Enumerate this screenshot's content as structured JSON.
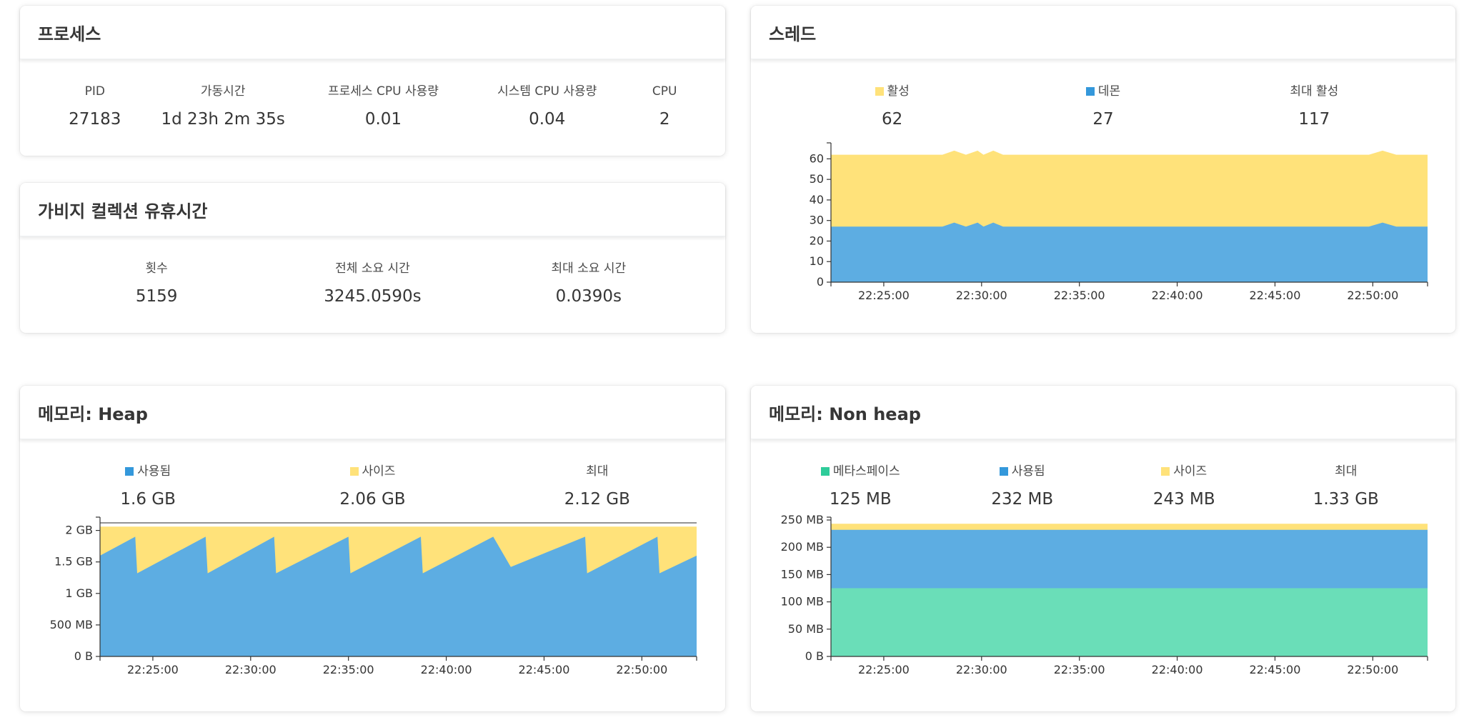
{
  "colors": {
    "active": "#ffe27a",
    "daemon": "#5dade2",
    "used": "#5dade2",
    "size": "#ffe27a",
    "metaspace": "#6adeb8"
  },
  "process": {
    "title": "프로세스",
    "stats": [
      {
        "label": "PID",
        "value": "27183"
      },
      {
        "label": "가동시간",
        "value": "1d 23h 2m 35s"
      },
      {
        "label": "프로세스 CPU 사용량",
        "value": "0.01"
      },
      {
        "label": "시스템 CPU 사용량",
        "value": "0.04"
      },
      {
        "label": "CPU",
        "value": "2"
      }
    ]
  },
  "gc": {
    "title": "가비지 컬렉션 유휴시간",
    "stats": [
      {
        "label": "횟수",
        "value": "5159"
      },
      {
        "label": "전체 소요 시간",
        "value": "3245.0590s"
      },
      {
        "label": "최대 소요 시간",
        "value": "0.0390s"
      }
    ]
  },
  "threads": {
    "title": "스레드",
    "stats": [
      {
        "label": "활성",
        "value": "62",
        "color": "#ffe27a"
      },
      {
        "label": "데몬",
        "value": "27",
        "color": "#5dade2"
      },
      {
        "label": "최대 활성",
        "value": "117"
      }
    ]
  },
  "heap": {
    "title": "메모리: Heap",
    "stats": [
      {
        "label": "사용됨",
        "value": "1.6 GB",
        "color": "#5dade2"
      },
      {
        "label": "사이즈",
        "value": "2.06 GB",
        "color": "#ffe27a"
      },
      {
        "label": "최대",
        "value": "2.12 GB"
      }
    ]
  },
  "nonheap": {
    "title": "메모리: Non heap",
    "stats": [
      {
        "label": "메타스페이스",
        "value": "125 MB",
        "color": "#6adeb8"
      },
      {
        "label": "사용됨",
        "value": "232 MB",
        "color": "#5dade2"
      },
      {
        "label": "사이즈",
        "value": "243 MB",
        "color": "#ffe27a"
      },
      {
        "label": "최대",
        "value": "1.33 GB"
      }
    ]
  },
  "chart_data": [
    {
      "id": "threads",
      "type": "area",
      "xticks": [
        "22:25:00",
        "22:30:00",
        "22:35:00",
        "22:40:00",
        "22:45:00",
        "22:50:00"
      ],
      "xticks_min": [
        5,
        10,
        15,
        20,
        25,
        30
      ],
      "xlim": [
        2.3,
        32.8
      ],
      "ylim": [
        0,
        65
      ],
      "yticks": [
        {
          "v": 0,
          "l": "0"
        },
        {
          "v": 10,
          "l": "10"
        },
        {
          "v": 20,
          "l": "20"
        },
        {
          "v": 30,
          "l": "30"
        },
        {
          "v": 40,
          "l": "40"
        },
        {
          "v": 50,
          "l": "50"
        },
        {
          "v": 60,
          "l": "60"
        }
      ],
      "series": [
        {
          "name": "활성",
          "color": "#ffe27a",
          "x": [
            2.3,
            8.0,
            8.6,
            9.2,
            9.8,
            10.1,
            10.6,
            11.1,
            16,
            24,
            29.8,
            30.5,
            31.2,
            32.8
          ],
          "y": [
            62,
            62,
            64,
            62,
            64,
            62,
            64,
            62,
            62,
            62,
            62,
            64,
            62,
            62
          ]
        },
        {
          "name": "데몬",
          "color": "#5dade2",
          "x": [
            2.3,
            8.0,
            8.6,
            9.2,
            9.8,
            10.1,
            10.6,
            11.1,
            16,
            24,
            29.8,
            30.5,
            31.2,
            32.8
          ],
          "y": [
            27,
            27,
            29,
            27,
            29,
            27,
            29,
            27,
            27,
            27,
            27,
            29,
            27,
            27
          ]
        }
      ]
    },
    {
      "id": "heap",
      "type": "area",
      "xticks": [
        "22:25:00",
        "22:30:00",
        "22:35:00",
        "22:40:00",
        "22:45:00",
        "22:50:00"
      ],
      "xticks_min": [
        5,
        10,
        15,
        20,
        25,
        30
      ],
      "xlim": [
        2.3,
        32.8
      ],
      "ylim": [
        0,
        2.12
      ],
      "yticks": [
        {
          "v": 0,
          "l": "0 B"
        },
        {
          "v": 0.5,
          "l": "500 MB"
        },
        {
          "v": 1,
          "l": "1 GB"
        },
        {
          "v": 1.5,
          "l": "1.5 GB"
        },
        {
          "v": 2,
          "l": "2 GB"
        }
      ],
      "max_line": 2.12,
      "series": [
        {
          "name": "사이즈",
          "color": "#ffe27a",
          "x": [
            2.3,
            32.8
          ],
          "y": [
            2.06,
            2.06
          ]
        },
        {
          "name": "사용됨",
          "color": "#5dade2",
          "x": [
            2.3,
            4.1,
            4.2,
            7.7,
            7.8,
            11.2,
            11.3,
            15.0,
            15.1,
            18.7,
            18.8,
            22.4,
            23.3,
            27.1,
            27.2,
            30.8,
            30.9,
            32.8
          ],
          "y": [
            1.6,
            1.9,
            1.32,
            1.9,
            1.32,
            1.9,
            1.32,
            1.9,
            1.32,
            1.9,
            1.32,
            1.9,
            1.42,
            1.9,
            1.32,
            1.9,
            1.32,
            1.6
          ]
        }
      ]
    },
    {
      "id": "nonheap",
      "type": "area",
      "xticks": [
        "22:25:00",
        "22:30:00",
        "22:35:00",
        "22:40:00",
        "22:45:00",
        "22:50:00"
      ],
      "xticks_min": [
        5,
        10,
        15,
        20,
        25,
        30
      ],
      "xlim": [
        2.3,
        32.8
      ],
      "ylim": [
        0,
        250
      ],
      "yticks": [
        {
          "v": 0,
          "l": "0 B"
        },
        {
          "v": 50,
          "l": "50 MB"
        },
        {
          "v": 100,
          "l": "100 MB"
        },
        {
          "v": 150,
          "l": "150 MB"
        },
        {
          "v": 200,
          "l": "200 MB"
        },
        {
          "v": 250,
          "l": "250 MB"
        }
      ],
      "series": [
        {
          "name": "사이즈",
          "color": "#ffe27a",
          "x": [
            2.3,
            32.8
          ],
          "y": [
            243,
            243
          ]
        },
        {
          "name": "사용됨",
          "color": "#5dade2",
          "x": [
            2.3,
            32.8
          ],
          "y": [
            232,
            232
          ]
        },
        {
          "name": "메타스페이스",
          "color": "#6adeb8",
          "x": [
            2.3,
            32.8
          ],
          "y": [
            125,
            125
          ]
        }
      ]
    }
  ]
}
